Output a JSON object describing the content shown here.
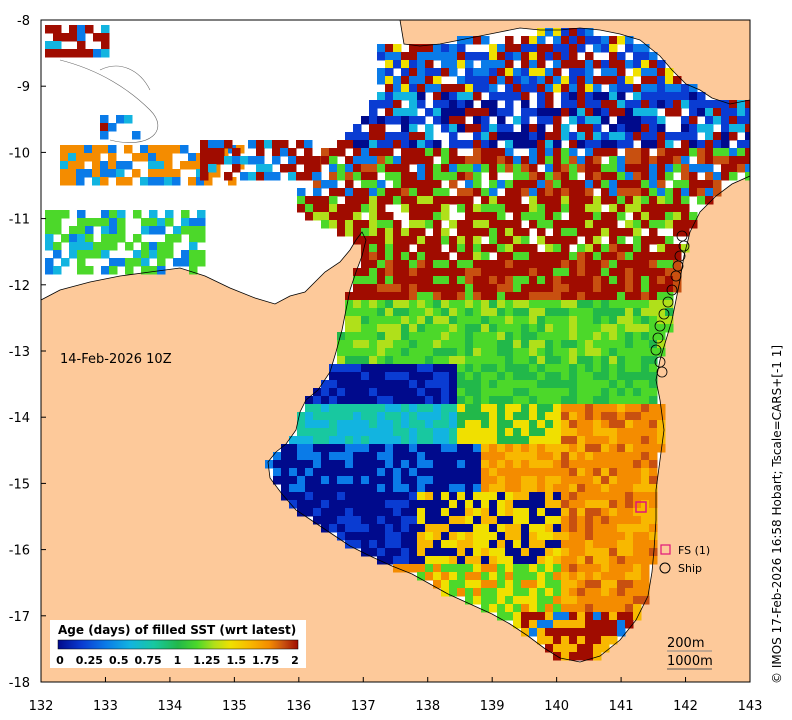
{
  "map": {
    "date_label": "14-Feb-2026 10Z",
    "credit": "© IMOS 17-Feb-2026 16:58 Hobart; Tscale=CARS+[-1 1]",
    "x_ticks": [
      "132",
      "133",
      "134",
      "135",
      "136",
      "137",
      "138",
      "139",
      "140",
      "141",
      "142",
      "143"
    ],
    "y_ticks": [
      "-8",
      "-9",
      "-10",
      "-11",
      "-12",
      "-13",
      "-14",
      "-15",
      "-16",
      "-17",
      "-18"
    ],
    "lon_range": [
      132,
      143
    ],
    "lat_range": [
      -18,
      -8
    ],
    "colors": {
      "land": "#fdc99a",
      "nodata": "#ffffff",
      "ramp": [
        "#000a8c",
        "#0a3cd2",
        "#0a7be8",
        "#12b4e0",
        "#18c8a0",
        "#22b84a",
        "#4cd82a",
        "#b0e01a",
        "#f0e000",
        "#f8b800",
        "#f48c00",
        "#c85010",
        "#a00c00"
      ]
    },
    "legend": {
      "title": "Age (days) of filled SST (wrt latest)",
      "labels": [
        "0",
        "0.25",
        "0.5",
        "0.75",
        "1",
        "1.25",
        "1.5",
        "1.75",
        "2"
      ]
    },
    "key": {
      "fs_label": "FS (1)",
      "ship_label": "Ship"
    },
    "contours": {
      "label_200": "200m",
      "label_1000": "1000m"
    }
  }
}
